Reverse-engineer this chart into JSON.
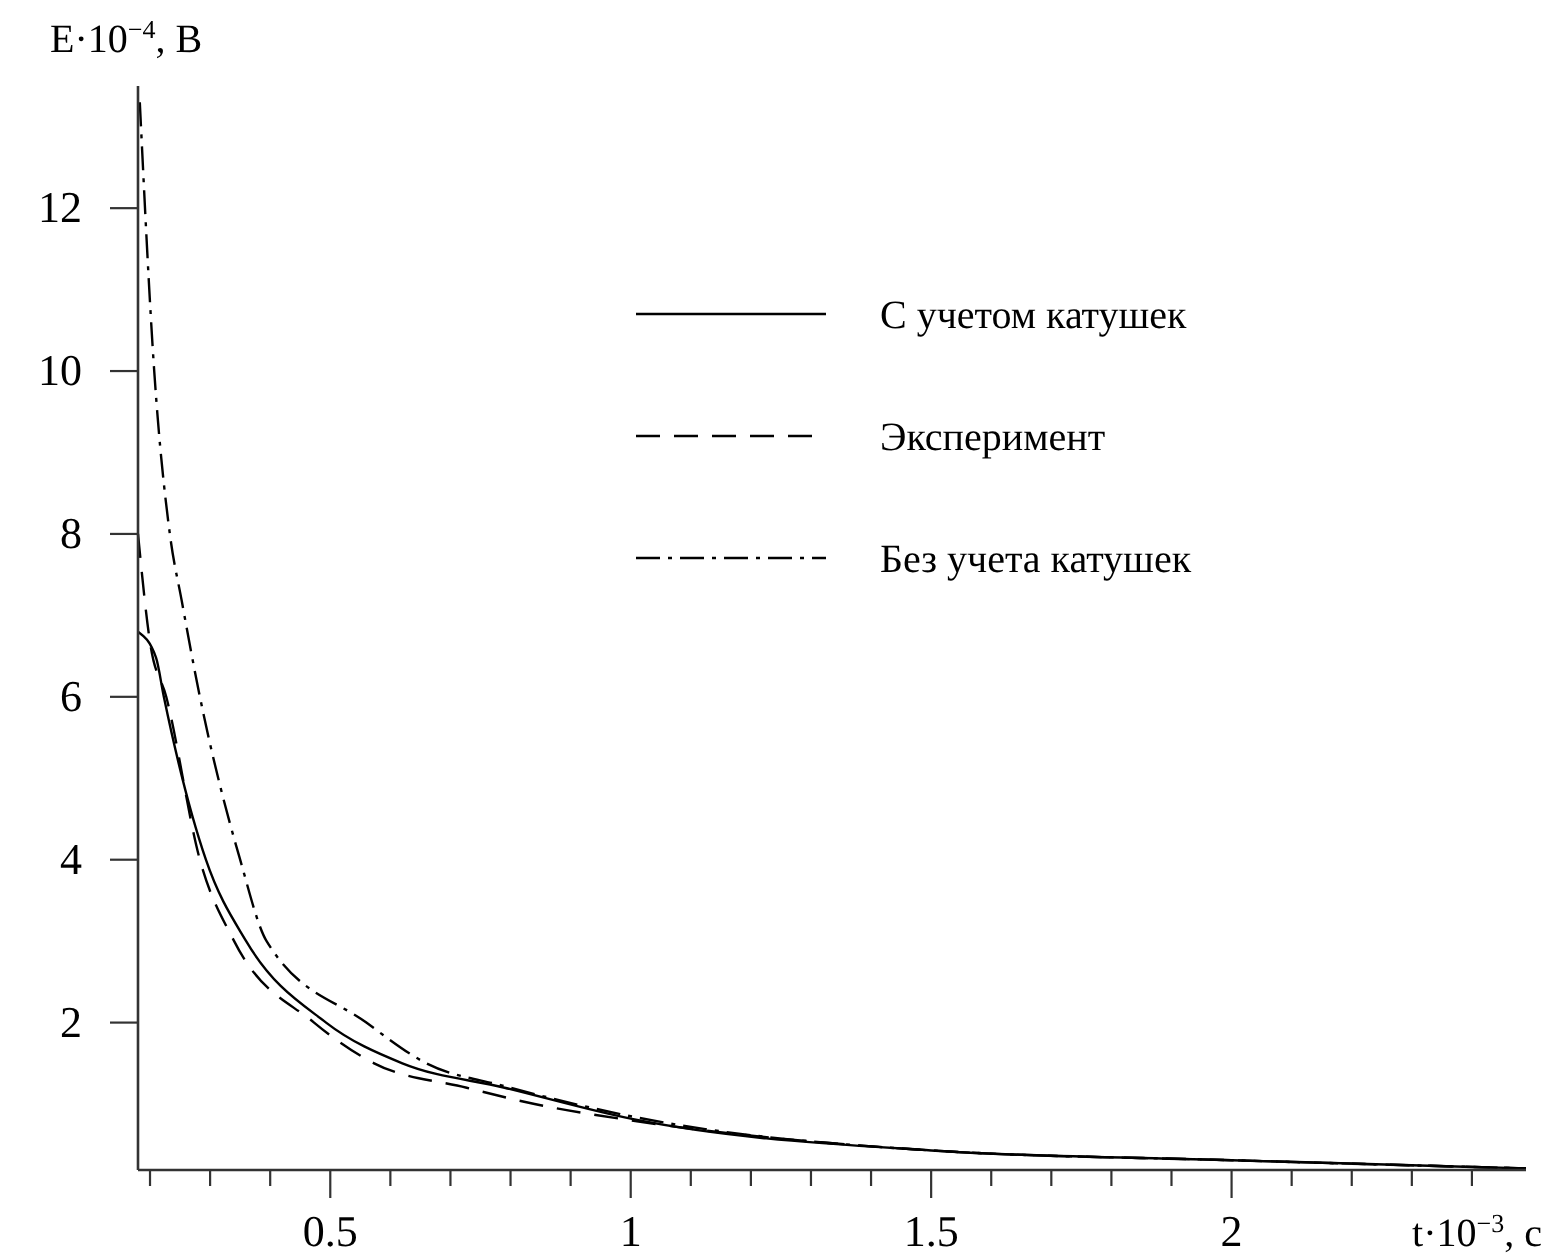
{
  "chart_data": {
    "type": "line",
    "xlabel": "t·10$^{−3}$, с",
    "ylabel": "E·10$^{−4}$, В",
    "xlim": [
      0.18,
      2.49
    ],
    "ylim": [
      0.19,
      13.5
    ],
    "xticks": [
      {
        "value": 0.2,
        "label": null
      },
      {
        "value": 0.3,
        "label": null
      },
      {
        "value": 0.4,
        "label": null
      },
      {
        "value": 0.5,
        "label": "0.5"
      },
      {
        "value": 0.6,
        "label": null
      },
      {
        "value": 0.7,
        "label": null
      },
      {
        "value": 0.8,
        "label": null
      },
      {
        "value": 0.9,
        "label": null
      },
      {
        "value": 1,
        "label": "1"
      },
      {
        "value": 1.1,
        "label": null
      },
      {
        "value": 1.2,
        "label": null
      },
      {
        "value": 1.3,
        "label": null
      },
      {
        "value": 1.4,
        "label": null
      },
      {
        "value": 1.5,
        "label": "1.5"
      },
      {
        "value": 1.6,
        "label": null
      },
      {
        "value": 1.7,
        "label": null
      },
      {
        "value": 1.8,
        "label": null
      },
      {
        "value": 1.9,
        "label": null
      },
      {
        "value": 2,
        "label": "2"
      },
      {
        "value": 2.1,
        "label": null
      },
      {
        "value": 2.2,
        "label": null
      },
      {
        "value": 2.3,
        "label": null
      },
      {
        "value": 2.4,
        "label": null
      }
    ],
    "yticks": [
      2,
      4,
      6,
      8,
      10,
      12
    ],
    "grid": false,
    "legend": "top right",
    "series": [
      {
        "name": "С учетом катушек",
        "color": "#000000",
        "line_style": "solid",
        "x": [
          0.18,
          0.21,
          0.223,
          0.293,
          0.36,
          0.493,
          0.62,
          0.79,
          1.0,
          1.5,
          2.0,
          2.49
        ],
        "values": [
          6.8,
          6.48,
          6.0,
          4.0,
          3.0,
          2.0,
          1.5,
          1.2,
          0.82,
          0.43,
          0.31,
          0.21
        ]
      },
      {
        "name": "Эксперимент",
        "color": "#000000",
        "line_style": "dashed",
        "x": [
          0.18,
          0.2,
          0.227,
          0.283,
          0.34,
          0.473,
          0.573,
          0.727,
          0.84,
          1.0,
          1.5,
          2.0,
          2.49
        ],
        "values": [
          8.0,
          6.67,
          6.0,
          4.0,
          3.0,
          2.0,
          1.5,
          1.2,
          1.0,
          0.8,
          0.43,
          0.31,
          0.21
        ]
      },
      {
        "name": "Без учета катушек",
        "color": "#000000",
        "line_style": "dashdot",
        "x": [
          0.183,
          0.207,
          0.233,
          0.253,
          0.283,
          0.35,
          0.394,
          0.56,
          0.66,
          0.79,
          1.0,
          1.5,
          2.0,
          2.49
        ],
        "values": [
          13.3,
          10.0,
          8.0,
          7.17,
          6.0,
          4.0,
          3.0,
          2.0,
          1.5,
          1.22,
          0.85,
          0.43,
          0.31,
          0.21
        ]
      }
    ]
  }
}
